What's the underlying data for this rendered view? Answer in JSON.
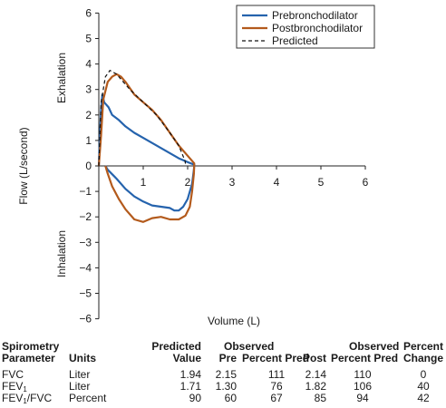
{
  "chart_data": {
    "type": "line",
    "xlabel": "Volume (L)",
    "ylabel": "Flow (L/second)",
    "ylabel_upper": "Exhalation",
    "ylabel_lower": "Inhalation",
    "xlim": [
      0,
      6
    ],
    "ylim": [
      -6,
      6
    ],
    "x_ticks": [
      {
        "value": 1,
        "label": "1"
      },
      {
        "value": 2,
        "label": "2"
      },
      {
        "value": 3,
        "label": "3"
      },
      {
        "value": 4,
        "label": "4"
      },
      {
        "value": 5,
        "label": "5"
      },
      {
        "value": 6,
        "label": "6"
      }
    ],
    "y_ticks": [
      {
        "value": 6,
        "label": "6"
      },
      {
        "value": 5,
        "label": "5"
      },
      {
        "value": 4,
        "label": "4"
      },
      {
        "value": 3,
        "label": "3"
      },
      {
        "value": 2,
        "label": "2"
      },
      {
        "value": 1,
        "label": "1"
      },
      {
        "value": 0,
        "label": "0"
      },
      {
        "value": -1,
        "label": "−1"
      },
      {
        "value": -2,
        "label": "−2"
      },
      {
        "value": -3,
        "label": "−3"
      },
      {
        "value": -4,
        "label": "−4"
      },
      {
        "value": -5,
        "label": "−5"
      },
      {
        "value": -6,
        "label": "−6"
      }
    ],
    "legend_position": "top-right",
    "series": [
      {
        "name": "Prebronchodilator",
        "color": "#2563ad",
        "dash": "solid",
        "points": [
          [
            0,
            0
          ],
          [
            0.02,
            1.0
          ],
          [
            0.05,
            2.2
          ],
          [
            0.08,
            2.8
          ],
          [
            0.12,
            2.5
          ],
          [
            0.22,
            2.3
          ],
          [
            0.3,
            2.0
          ],
          [
            0.45,
            1.8
          ],
          [
            0.6,
            1.55
          ],
          [
            0.8,
            1.3
          ],
          [
            1.0,
            1.1
          ],
          [
            1.2,
            0.9
          ],
          [
            1.4,
            0.7
          ],
          [
            1.6,
            0.5
          ],
          [
            1.8,
            0.3
          ],
          [
            2.0,
            0.15
          ],
          [
            2.15,
            0.05
          ],
          [
            2.14,
            -0.15
          ],
          [
            2.1,
            -0.7
          ],
          [
            2.0,
            -1.3
          ],
          [
            1.9,
            -1.6
          ],
          [
            1.8,
            -1.75
          ],
          [
            1.7,
            -1.75
          ],
          [
            1.6,
            -1.65
          ],
          [
            1.4,
            -1.6
          ],
          [
            1.2,
            -1.55
          ],
          [
            1.0,
            -1.4
          ],
          [
            0.8,
            -1.2
          ],
          [
            0.6,
            -0.9
          ],
          [
            0.4,
            -0.5
          ],
          [
            0.2,
            -0.15
          ],
          [
            0.15,
            0
          ]
        ]
      },
      {
        "name": "Postbronchodilator",
        "color": "#b35a1c",
        "dash": "solid",
        "points": [
          [
            0,
            0
          ],
          [
            0.05,
            1.2
          ],
          [
            0.1,
            2.6
          ],
          [
            0.2,
            3.3
          ],
          [
            0.3,
            3.5
          ],
          [
            0.4,
            3.6
          ],
          [
            0.5,
            3.5
          ],
          [
            0.6,
            3.3
          ],
          [
            0.8,
            2.8
          ],
          [
            1.0,
            2.5
          ],
          [
            1.2,
            2.2
          ],
          [
            1.4,
            1.8
          ],
          [
            1.6,
            1.3
          ],
          [
            1.8,
            0.8
          ],
          [
            2.0,
            0.4
          ],
          [
            2.15,
            0.1
          ],
          [
            2.14,
            -0.3
          ],
          [
            2.1,
            -1.0
          ],
          [
            2.05,
            -1.6
          ],
          [
            1.95,
            -1.95
          ],
          [
            1.8,
            -2.1
          ],
          [
            1.6,
            -2.1
          ],
          [
            1.4,
            -2.0
          ],
          [
            1.2,
            -2.05
          ],
          [
            1.0,
            -2.2
          ],
          [
            0.8,
            -2.1
          ],
          [
            0.6,
            -1.7
          ],
          [
            0.45,
            -1.3
          ],
          [
            0.3,
            -0.8
          ],
          [
            0.2,
            -0.3
          ],
          [
            0.15,
            0
          ]
        ]
      },
      {
        "name": "Predicted",
        "color": "#111111",
        "dash": "dashed",
        "points": [
          [
            0,
            0
          ],
          [
            0.05,
            2.5
          ],
          [
            0.15,
            3.5
          ],
          [
            0.25,
            3.75
          ],
          [
            0.4,
            3.6
          ],
          [
            0.7,
            3.0
          ],
          [
            1.0,
            2.5
          ],
          [
            1.3,
            2.0
          ],
          [
            1.6,
            1.3
          ],
          [
            1.8,
            0.8
          ],
          [
            1.94,
            0.2
          ],
          [
            1.96,
            0
          ]
        ]
      }
    ]
  },
  "table": {
    "header_top": {
      "col0": "Spirometry",
      "col_pred": "Predicted",
      "col_obs_pre": "Observed",
      "col_obs_post": "Observed",
      "col_change": "Percent"
    },
    "header_bottom": {
      "col0": "Parameter",
      "col_units": "Units",
      "col_pred": "Value",
      "col_pre": "Pre",
      "col_pre_pct": "Percent Pred",
      "col_post": "Post",
      "col_post_pct": "Percent Pred",
      "col_change": "Change"
    },
    "rows": [
      {
        "param": "FVC",
        "sub": "",
        "suffix": "",
        "units": "Liter",
        "pred": "1.94",
        "pre": "2.15",
        "pre_pct": "111",
        "post": "2.14",
        "post_pct": "110",
        "change": "0"
      },
      {
        "param": "FEV",
        "sub": "1",
        "suffix": "",
        "units": "Liter",
        "pred": "1.71",
        "pre": "1.30",
        "pre_pct": "76",
        "post": "1.82",
        "post_pct": "106",
        "change": "40"
      },
      {
        "param": "FEV",
        "sub": "1",
        "suffix": "/FVC",
        "units": "Percent",
        "pred": "90",
        "pre": "60",
        "pre_pct": "67",
        "post": "85",
        "post_pct": "94",
        "change": "42"
      }
    ]
  }
}
